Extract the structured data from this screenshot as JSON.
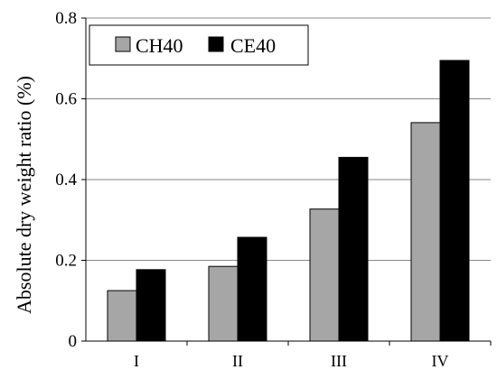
{
  "chart_data": {
    "type": "bar",
    "title": "",
    "xlabel": "",
    "ylabel": "Absolute dry weight ratio (%)",
    "categories": [
      "I",
      "II",
      "III",
      "IV"
    ],
    "series": [
      {
        "name": "CH40",
        "color": "#a6a6a6",
        "values": [
          0.125,
          0.185,
          0.327,
          0.541
        ]
      },
      {
        "name": "CE40",
        "color": "#000000",
        "values": [
          0.177,
          0.257,
          0.455,
          0.695
        ]
      }
    ],
    "ylim": [
      0,
      0.8
    ],
    "yticks": [
      0,
      0.2,
      0.4,
      0.6,
      0.8
    ],
    "ytick_labels": [
      "0",
      "0.2",
      "0.4",
      "0.6",
      "0.8"
    ],
    "grid": "horizontal",
    "legend": {
      "placement": "top-left",
      "entries": [
        "CH40",
        "CE40"
      ]
    }
  }
}
